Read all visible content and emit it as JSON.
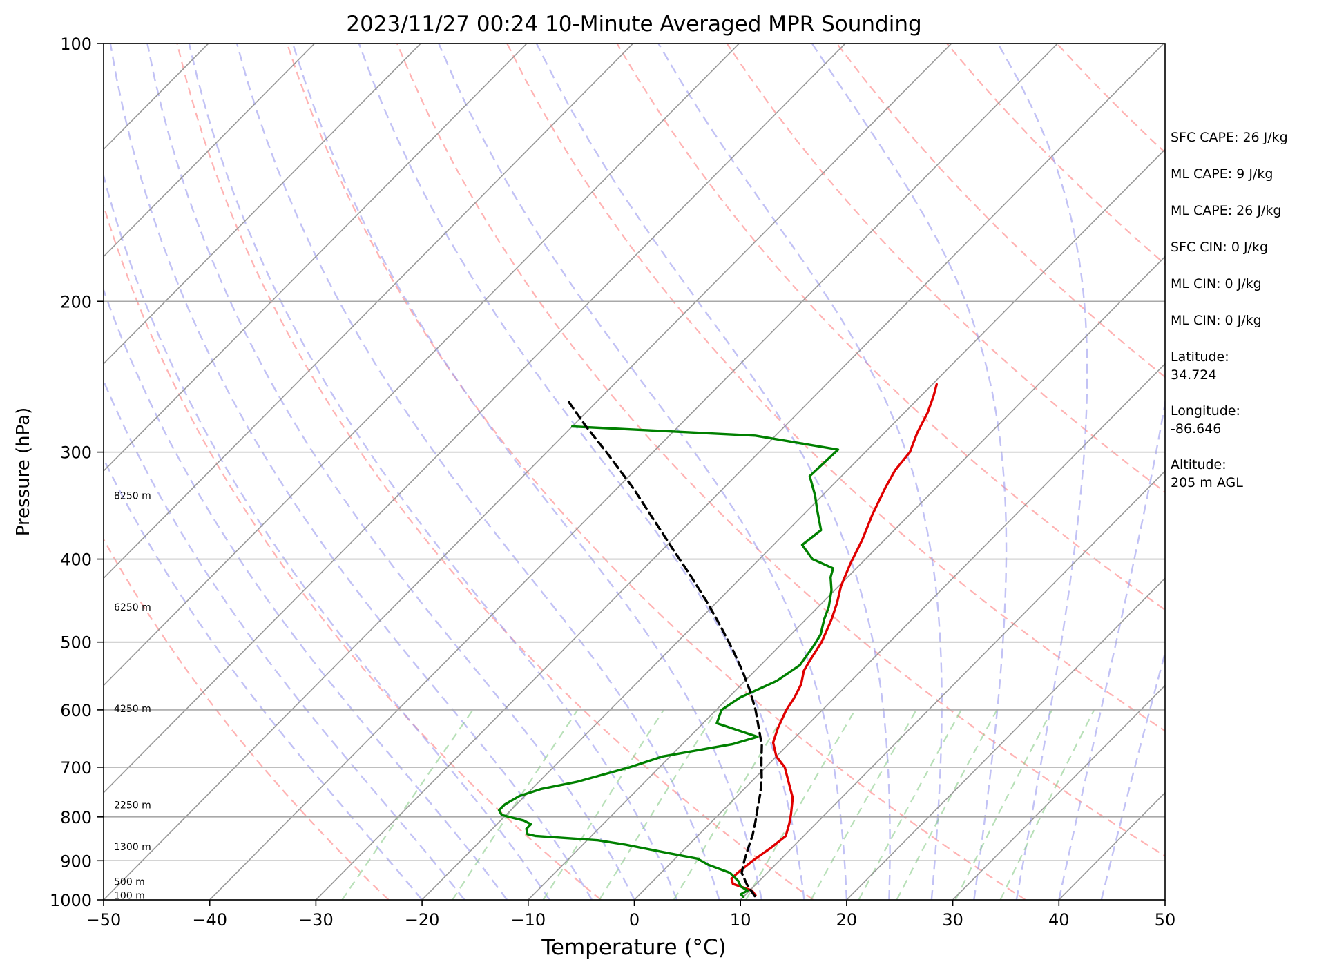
{
  "chart_data": {
    "type": "skew-t log-p sounding",
    "title": "2023/11/27 00:24 10-Minute Averaged MPR Sounding",
    "xlabel": "Temperature (°C)",
    "ylabel": "Pressure (hPa)",
    "xlim": [
      -50,
      50
    ],
    "ylim": [
      1000,
      100
    ],
    "y_scale": "log",
    "x_ticks": [
      -50,
      -40,
      -30,
      -20,
      -10,
      0,
      10,
      20,
      30,
      40,
      50
    ],
    "x_tick_labels": [
      "−50",
      "−40",
      "−30",
      "−20",
      "−10",
      "0",
      "10",
      "20",
      "30",
      "40",
      "50"
    ],
    "y_ticks": [
      1000,
      900,
      800,
      700,
      600,
      500,
      400,
      300,
      200,
      100
    ],
    "y_tick_labels": [
      "1000",
      "900",
      "800",
      "700",
      "600",
      "500",
      "400",
      "300",
      "200",
      "100"
    ],
    "grid": true,
    "height_labels": [
      {
        "pressure": 988,
        "label": "100 m"
      },
      {
        "pressure": 952,
        "label": "500 m"
      },
      {
        "pressure": 867,
        "label": "1300 m"
      },
      {
        "pressure": 775,
        "label": "2250 m"
      },
      {
        "pressure": 598,
        "label": "4250 m"
      },
      {
        "pressure": 455,
        "label": "6250 m"
      },
      {
        "pressure": 337,
        "label": "8250 m"
      }
    ],
    "series": [
      {
        "role": "temperature",
        "color": "#e00000",
        "points": [
          [
            988,
            11.0
          ],
          [
            975,
            10.2
          ],
          [
            958,
            7.8
          ],
          [
            945,
            7.2
          ],
          [
            930,
            7.2
          ],
          [
            900,
            7.5
          ],
          [
            870,
            8.0
          ],
          [
            842,
            8.3
          ],
          [
            815,
            7.5
          ],
          [
            795,
            6.8
          ],
          [
            760,
            5.4
          ],
          [
            700,
            1.8
          ],
          [
            680,
            0.0
          ],
          [
            655,
            -1.6
          ],
          [
            630,
            -2.5
          ],
          [
            600,
            -3.4
          ],
          [
            580,
            -3.8
          ],
          [
            560,
            -4.4
          ],
          [
            540,
            -5.4
          ],
          [
            525,
            -5.8
          ],
          [
            500,
            -6.4
          ],
          [
            470,
            -7.6
          ],
          [
            450,
            -8.6
          ],
          [
            430,
            -9.8
          ],
          [
            405,
            -11.0
          ],
          [
            380,
            -12.1
          ],
          [
            355,
            -13.5
          ],
          [
            330,
            -14.8
          ],
          [
            315,
            -15.5
          ],
          [
            300,
            -15.8
          ],
          [
            285,
            -16.9
          ],
          [
            270,
            -17.8
          ],
          [
            258,
            -18.8
          ],
          [
            250,
            -19.6
          ]
        ]
      },
      {
        "role": "dewpoint",
        "color": "#008000",
        "points": [
          [
            992,
            10.0
          ],
          [
            985,
            9.5
          ],
          [
            975,
            9.8
          ],
          [
            965,
            8.8
          ],
          [
            950,
            8.0
          ],
          [
            930,
            6.5
          ],
          [
            910,
            3.7
          ],
          [
            895,
            2.1
          ],
          [
            880,
            -1.6
          ],
          [
            862,
            -6.0
          ],
          [
            852,
            -9.0
          ],
          [
            842,
            -15.3
          ],
          [
            838,
            -16.2
          ],
          [
            826,
            -16.8
          ],
          [
            816,
            -16.8
          ],
          [
            808,
            -17.8
          ],
          [
            796,
            -20.4
          ],
          [
            786,
            -21.1
          ],
          [
            774,
            -21.1
          ],
          [
            756,
            -20.5
          ],
          [
            742,
            -19.1
          ],
          [
            728,
            -16.4
          ],
          [
            700,
            -12.8
          ],
          [
            680,
            -10.7
          ],
          [
            658,
            -5.3
          ],
          [
            645,
            -3.6
          ],
          [
            622,
            -8.7
          ],
          [
            600,
            -9.5
          ],
          [
            580,
            -8.9
          ],
          [
            555,
            -7.0
          ],
          [
            532,
            -6.3
          ],
          [
            505,
            -6.8
          ],
          [
            490,
            -7.2
          ],
          [
            470,
            -8.3
          ],
          [
            455,
            -9.0
          ],
          [
            435,
            -10.3
          ],
          [
            420,
            -11.6
          ],
          [
            410,
            -12.2
          ],
          [
            400,
            -15.0
          ],
          [
            385,
            -17.3
          ],
          [
            370,
            -16.9
          ],
          [
            350,
            -19.2
          ],
          [
            337,
            -20.7
          ],
          [
            320,
            -23.0
          ],
          [
            298,
            -22.8
          ],
          [
            287,
            -31.9
          ],
          [
            280,
            -50.0
          ]
        ]
      },
      {
        "role": "parcel",
        "color": "#000000",
        "points": [
          [
            990,
            11.0
          ],
          [
            960,
            9.2
          ],
          [
            930,
            7.6
          ],
          [
            900,
            6.7
          ],
          [
            870,
            5.9
          ],
          [
            840,
            5.1
          ],
          [
            810,
            4.1
          ],
          [
            780,
            3.0
          ],
          [
            750,
            1.9
          ],
          [
            720,
            0.6
          ],
          [
            690,
            -0.9
          ],
          [
            660,
            -2.4
          ],
          [
            630,
            -4.3
          ],
          [
            600,
            -6.3
          ],
          [
            570,
            -8.6
          ],
          [
            540,
            -11.2
          ],
          [
            510,
            -14.1
          ],
          [
            480,
            -17.3
          ],
          [
            450,
            -20.8
          ],
          [
            420,
            -24.7
          ],
          [
            390,
            -29.0
          ],
          [
            360,
            -33.6
          ],
          [
            330,
            -38.6
          ],
          [
            300,
            -44.4
          ],
          [
            280,
            -48.7
          ],
          [
            260,
            -53.1
          ]
        ]
      }
    ],
    "reference_lines": {
      "isotherms_color": "#999999",
      "dry_adiabats_color": "#ff9999",
      "moist_adiabats_color": "#9999ee",
      "mixing_ratio_color": "#88cc88"
    }
  },
  "info": {
    "sfc_cape": "SFC CAPE: 26 J/kg",
    "ml_cape_1": "ML CAPE: 9 J/kg",
    "ml_cape_2": "ML CAPE: 26 J/kg",
    "sfc_cin": "SFC CIN: 0 J/kg",
    "ml_cin_1": "ML CIN: 0 J/kg",
    "ml_cin_2": "ML CIN: 0 J/kg",
    "latitude_label": "Latitude:",
    "latitude_value": "34.724",
    "longitude_label": "Longitude:",
    "longitude_value": "-86.646",
    "altitude_label": "Altitude:",
    "altitude_value": "205 m AGL"
  }
}
